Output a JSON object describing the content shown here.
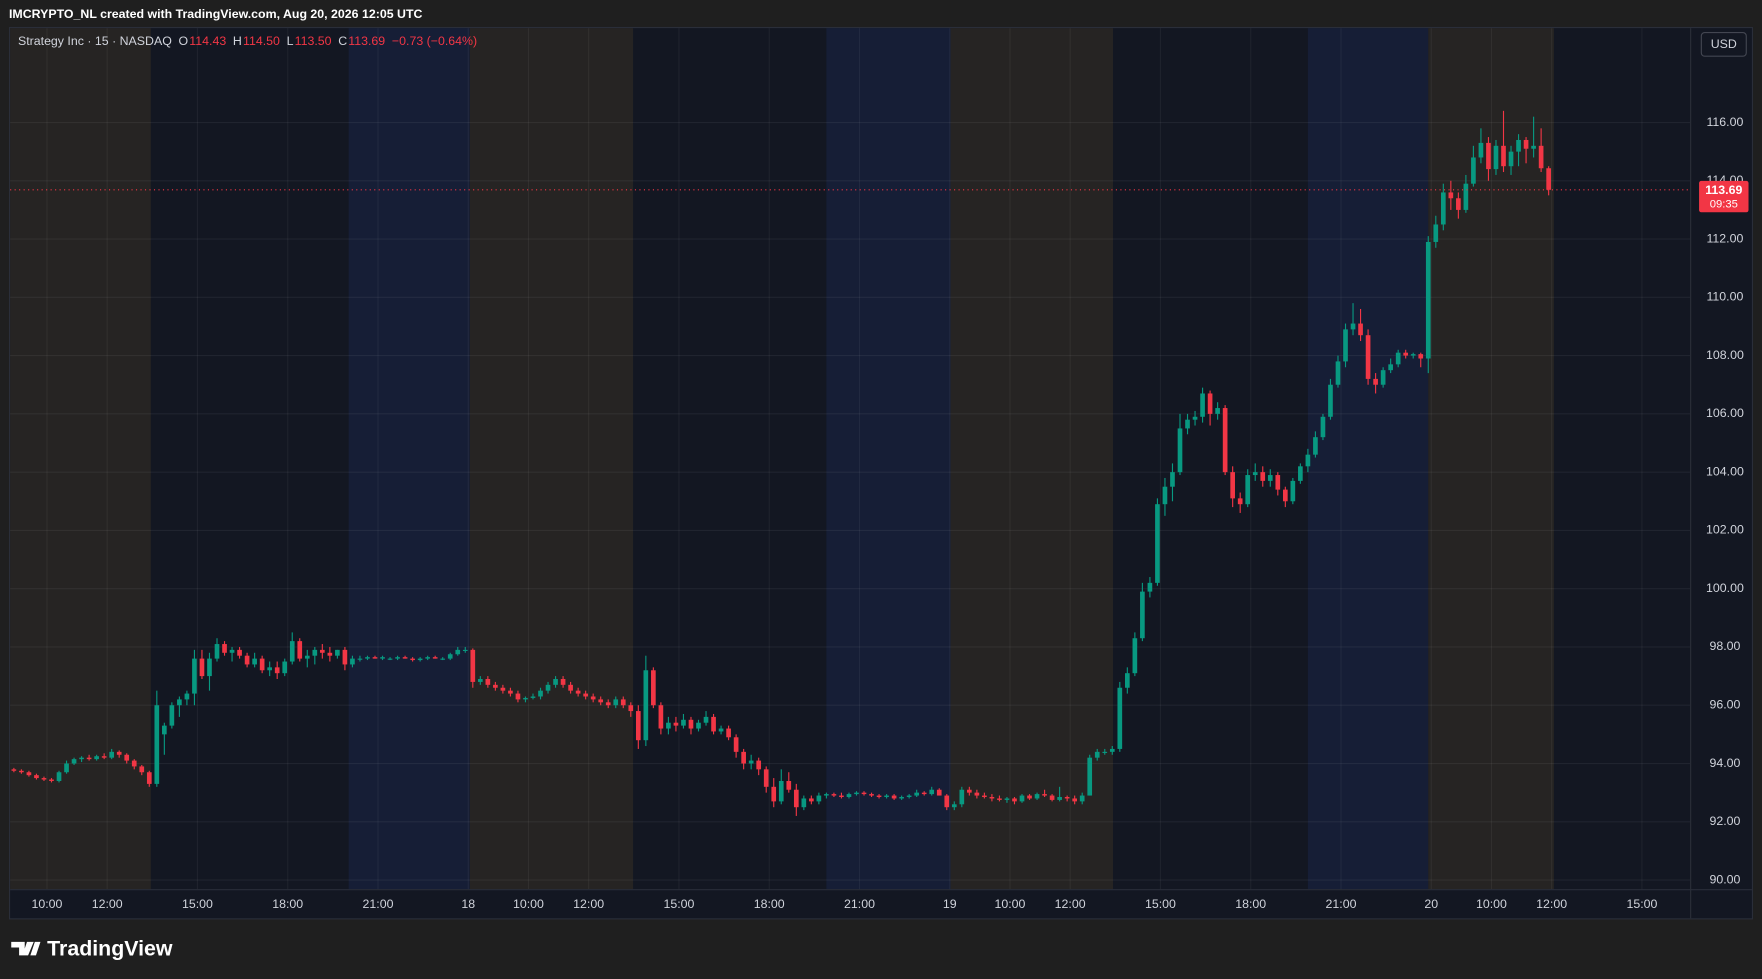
{
  "header": {
    "caption": "IMCRYPTO_NL created with TradingView.com, Aug 20, 2026 12:05 UTC"
  },
  "footer": {
    "brand": "TradingView"
  },
  "chart_data": {
    "type": "candlestick",
    "legend": {
      "symbol": "Strategy Inc · 15 · NASDAQ",
      "ohlc": [
        {
          "label": "O",
          "value": "114.43"
        },
        {
          "label": "H",
          "value": "114.50"
        },
        {
          "label": "L",
          "value": "113.50"
        },
        {
          "label": "C",
          "value": "113.69"
        }
      ],
      "change": "−0.73 (−0.64%)"
    },
    "currency": "USD",
    "last_price": {
      "label": "113.69",
      "countdown": "09:35"
    },
    "up_color": "#089981",
    "down_color": "#f23645",
    "xlim": [
      -0.5,
      222.8
    ],
    "ylim": [
      89.69,
      119.24
    ],
    "yticks": [
      {
        "value": 90,
        "label": "90.00"
      },
      {
        "value": 92,
        "label": "92.00"
      },
      {
        "value": 94,
        "label": "94.00"
      },
      {
        "value": 96,
        "label": "96.00"
      },
      {
        "value": 98,
        "label": "98.00"
      },
      {
        "value": 100,
        "label": "100.00"
      },
      {
        "value": 102,
        "label": "102.00"
      },
      {
        "value": 104,
        "label": "104.00"
      },
      {
        "value": 106,
        "label": "106.00"
      },
      {
        "value": 108,
        "label": "108.00"
      },
      {
        "value": 110,
        "label": "110.00"
      },
      {
        "value": 112,
        "label": "112.00"
      },
      {
        "value": 114,
        "label": "114.00"
      },
      {
        "value": 116,
        "label": "116.00"
      }
    ],
    "xticks": [
      {
        "value": 4.4,
        "label": "10:00"
      },
      {
        "value": 12.4,
        "label": "12:00"
      },
      {
        "value": 24.4,
        "label": "15:00"
      },
      {
        "value": 36.4,
        "label": "18:00"
      },
      {
        "value": 48.4,
        "label": "21:00"
      },
      {
        "value": 60.4,
        "label": "18"
      },
      {
        "value": 68.4,
        "label": "10:00"
      },
      {
        "value": 76.4,
        "label": "12:00"
      },
      {
        "value": 88.4,
        "label": "15:00"
      },
      {
        "value": 100.4,
        "label": "18:00"
      },
      {
        "value": 112.4,
        "label": "21:00"
      },
      {
        "value": 124.4,
        "label": "19"
      },
      {
        "value": 132.4,
        "label": "10:00"
      },
      {
        "value": 140.4,
        "label": "12:00"
      },
      {
        "value": 152.4,
        "label": "15:00"
      },
      {
        "value": 164.4,
        "label": "18:00"
      },
      {
        "value": 176.4,
        "label": "21:00"
      },
      {
        "value": 188.4,
        "label": "20"
      },
      {
        "value": 196.4,
        "label": "10:00"
      },
      {
        "value": 204.4,
        "label": "12:00"
      },
      {
        "value": 216.4,
        "label": "15:00"
      }
    ],
    "ohlc": [
      [
        93.8,
        93.85,
        93.7,
        93.75
      ],
      [
        93.75,
        93.8,
        93.65,
        93.7
      ],
      [
        93.7,
        93.75,
        93.55,
        93.6
      ],
      [
        93.6,
        93.65,
        93.45,
        93.5
      ],
      [
        93.5,
        93.55,
        93.4,
        93.45
      ],
      [
        93.45,
        93.5,
        93.35,
        93.4
      ],
      [
        93.4,
        93.75,
        93.35,
        93.7
      ],
      [
        93.7,
        94.1,
        93.65,
        94.0
      ],
      [
        94.0,
        94.2,
        93.95,
        94.15
      ],
      [
        94.15,
        94.25,
        94.05,
        94.2
      ],
      [
        94.2,
        94.3,
        94.1,
        94.15
      ],
      [
        94.15,
        94.3,
        94.1,
        94.25
      ],
      [
        94.25,
        94.35,
        94.15,
        94.2
      ],
      [
        94.2,
        94.5,
        94.15,
        94.4
      ],
      [
        94.4,
        94.45,
        94.2,
        94.3
      ],
      [
        94.3,
        94.35,
        94.0,
        94.1
      ],
      [
        94.1,
        94.15,
        93.8,
        93.9
      ],
      [
        93.9,
        93.95,
        93.6,
        93.7
      ],
      [
        93.7,
        93.75,
        93.2,
        93.3
      ],
      [
        93.3,
        96.5,
        93.2,
        96.0
      ],
      [
        95.0,
        95.4,
        94.3,
        95.3
      ],
      [
        95.3,
        96.1,
        95.2,
        96.0
      ],
      [
        96.0,
        96.3,
        95.6,
        96.2
      ],
      [
        96.2,
        96.5,
        96.0,
        96.4
      ],
      [
        96.4,
        97.9,
        96.0,
        97.6
      ],
      [
        97.6,
        97.9,
        96.9,
        97.0
      ],
      [
        97.0,
        97.8,
        96.5,
        97.6
      ],
      [
        97.6,
        98.3,
        97.5,
        98.1
      ],
      [
        98.1,
        98.2,
        97.7,
        97.8
      ],
      [
        97.8,
        98.0,
        97.5,
        97.9
      ],
      [
        97.9,
        98.0,
        97.6,
        97.7
      ],
      [
        97.7,
        97.8,
        97.3,
        97.4
      ],
      [
        97.4,
        97.8,
        97.3,
        97.6
      ],
      [
        97.6,
        97.7,
        97.1,
        97.2
      ],
      [
        97.2,
        97.5,
        97.0,
        97.3
      ],
      [
        97.3,
        97.5,
        96.9,
        97.1
      ],
      [
        97.1,
        97.6,
        97.0,
        97.5
      ],
      [
        97.5,
        98.5,
        97.4,
        98.2
      ],
      [
        98.2,
        98.3,
        97.5,
        97.6
      ],
      [
        97.6,
        97.9,
        97.3,
        97.7
      ],
      [
        97.7,
        98.0,
        97.4,
        97.9
      ],
      [
        97.9,
        98.1,
        97.6,
        97.8
      ],
      [
        97.8,
        98.0,
        97.5,
        97.7
      ],
      [
        97.7,
        97.9,
        97.6,
        97.9
      ],
      [
        97.9,
        98.0,
        97.2,
        97.4
      ],
      [
        97.4,
        97.7,
        97.3,
        97.6
      ],
      [
        97.6,
        97.7,
        97.5,
        97.6
      ],
      [
        97.6,
        97.7,
        97.55,
        97.65
      ],
      [
        97.65,
        97.7,
        97.6,
        97.6
      ],
      [
        97.6,
        97.7,
        97.55,
        97.65
      ],
      [
        97.6,
        97.65,
        97.55,
        97.6
      ],
      [
        97.6,
        97.7,
        97.55,
        97.65
      ],
      [
        97.65,
        97.7,
        97.6,
        97.6
      ],
      [
        97.6,
        97.65,
        97.5,
        97.55
      ],
      [
        97.55,
        97.65,
        97.5,
        97.6
      ],
      [
        97.6,
        97.7,
        97.55,
        97.65
      ],
      [
        97.65,
        97.7,
        97.6,
        97.6
      ],
      [
        97.6,
        97.65,
        97.55,
        97.6
      ],
      [
        97.6,
        97.8,
        97.55,
        97.75
      ],
      [
        97.75,
        98.0,
        97.7,
        97.9
      ],
      [
        97.9,
        98.0,
        97.8,
        97.9
      ],
      [
        97.9,
        97.95,
        96.6,
        96.8
      ],
      [
        96.8,
        97.0,
        96.7,
        96.9
      ],
      [
        96.9,
        97.0,
        96.6,
        96.7
      ],
      [
        96.7,
        96.8,
        96.5,
        96.6
      ],
      [
        96.6,
        96.7,
        96.4,
        96.5
      ],
      [
        96.5,
        96.6,
        96.3,
        96.4
      ],
      [
        96.4,
        96.5,
        96.1,
        96.2
      ],
      [
        96.2,
        96.3,
        96.1,
        96.25
      ],
      [
        96.25,
        96.4,
        96.2,
        96.3
      ],
      [
        96.3,
        96.6,
        96.2,
        96.5
      ],
      [
        96.5,
        96.8,
        96.4,
        96.7
      ],
      [
        96.7,
        97.0,
        96.6,
        96.9
      ],
      [
        96.9,
        97.0,
        96.6,
        96.7
      ],
      [
        96.7,
        96.8,
        96.4,
        96.5
      ],
      [
        96.5,
        96.6,
        96.3,
        96.4
      ],
      [
        96.4,
        96.5,
        96.2,
        96.3
      ],
      [
        96.3,
        96.4,
        96.1,
        96.2
      ],
      [
        96.2,
        96.3,
        96.0,
        96.1
      ],
      [
        96.1,
        96.2,
        95.9,
        96.0
      ],
      [
        96.0,
        96.3,
        95.9,
        96.2
      ],
      [
        96.2,
        96.3,
        95.9,
        96.0
      ],
      [
        96.0,
        96.1,
        95.6,
        95.8
      ],
      [
        95.8,
        96.0,
        94.5,
        94.8
      ],
      [
        94.8,
        97.7,
        94.6,
        97.2
      ],
      [
        97.2,
        97.3,
        95.9,
        96.0
      ],
      [
        96.0,
        96.1,
        95.0,
        95.2
      ],
      [
        95.2,
        95.6,
        95.0,
        95.4
      ],
      [
        95.4,
        95.6,
        95.1,
        95.3
      ],
      [
        95.3,
        95.7,
        95.2,
        95.5
      ],
      [
        95.5,
        95.6,
        95.0,
        95.2
      ],
      [
        95.2,
        95.5,
        95.1,
        95.4
      ],
      [
        95.4,
        95.8,
        95.3,
        95.6
      ],
      [
        95.6,
        95.7,
        95.0,
        95.1
      ],
      [
        95.1,
        95.3,
        95.0,
        95.2
      ],
      [
        95.2,
        95.3,
        94.8,
        94.9
      ],
      [
        94.9,
        95.0,
        94.2,
        94.4
      ],
      [
        94.4,
        94.5,
        93.8,
        94.0
      ],
      [
        94.0,
        94.3,
        93.8,
        94.1
      ],
      [
        94.1,
        94.2,
        93.6,
        93.8
      ],
      [
        93.8,
        93.9,
        93.0,
        93.2
      ],
      [
        93.2,
        93.5,
        92.5,
        92.7
      ],
      [
        92.7,
        93.8,
        92.6,
        93.4
      ],
      [
        93.4,
        93.7,
        93.0,
        93.1
      ],
      [
        93.1,
        93.3,
        92.2,
        92.5
      ],
      [
        92.5,
        92.9,
        92.4,
        92.8
      ],
      [
        92.8,
        92.9,
        92.6,
        92.7
      ],
      [
        92.7,
        93.0,
        92.6,
        92.9
      ],
      [
        92.9,
        93.0,
        92.8,
        92.95
      ],
      [
        92.95,
        93.0,
        92.85,
        92.9
      ],
      [
        92.9,
        93.0,
        92.8,
        92.85
      ],
      [
        92.85,
        93.0,
        92.8,
        92.95
      ],
      [
        92.95,
        93.05,
        92.9,
        93.0
      ],
      [
        93.0,
        93.05,
        92.9,
        92.95
      ],
      [
        92.95,
        93.0,
        92.85,
        92.9
      ],
      [
        92.9,
        92.95,
        92.8,
        92.85
      ],
      [
        92.85,
        92.95,
        92.8,
        92.9
      ],
      [
        92.9,
        92.95,
        92.75,
        92.8
      ],
      [
        92.8,
        92.9,
        92.75,
        92.85
      ],
      [
        92.85,
        92.95,
        92.8,
        92.9
      ],
      [
        92.9,
        93.1,
        92.85,
        93.0
      ],
      [
        93.0,
        93.05,
        92.9,
        92.95
      ],
      [
        92.95,
        93.2,
        92.9,
        93.1
      ],
      [
        93.1,
        93.15,
        92.9,
        92.9
      ],
      [
        92.9,
        92.95,
        92.4,
        92.5
      ],
      [
        92.5,
        92.7,
        92.4,
        92.6
      ],
      [
        92.6,
        93.2,
        92.5,
        93.1
      ],
      [
        93.1,
        93.2,
        92.9,
        93.0
      ],
      [
        93.0,
        93.1,
        92.8,
        92.9
      ],
      [
        92.9,
        93.0,
        92.8,
        92.85
      ],
      [
        92.85,
        92.95,
        92.7,
        92.8
      ],
      [
        92.8,
        92.9,
        92.7,
        92.75
      ],
      [
        92.75,
        92.85,
        92.65,
        92.8
      ],
      [
        92.8,
        92.85,
        92.6,
        92.7
      ],
      [
        92.7,
        92.95,
        92.65,
        92.9
      ],
      [
        92.9,
        92.95,
        92.75,
        92.8
      ],
      [
        92.8,
        93.0,
        92.75,
        92.95
      ],
      [
        92.95,
        93.1,
        92.85,
        92.9
      ],
      [
        92.9,
        92.95,
        92.7,
        92.75
      ],
      [
        92.75,
        93.2,
        92.7,
        92.85
      ],
      [
        92.85,
        92.9,
        92.7,
        92.8
      ],
      [
        92.8,
        92.9,
        92.6,
        92.7
      ],
      [
        92.7,
        93.0,
        92.6,
        92.9
      ],
      [
        92.9,
        94.3,
        92.9,
        94.2
      ],
      [
        94.2,
        94.5,
        94.1,
        94.4
      ],
      [
        94.4,
        94.5,
        94.3,
        94.4
      ],
      [
        94.4,
        94.6,
        94.3,
        94.5
      ],
      [
        94.5,
        96.8,
        94.4,
        96.6
      ],
      [
        96.6,
        97.3,
        96.4,
        97.1
      ],
      [
        97.1,
        98.5,
        97.0,
        98.3
      ],
      [
        98.3,
        100.2,
        98.2,
        99.9
      ],
      [
        99.9,
        100.4,
        99.7,
        100.2
      ],
      [
        100.2,
        103.1,
        100.1,
        102.9
      ],
      [
        102.9,
        103.8,
        102.5,
        103.5
      ],
      [
        103.5,
        104.3,
        103.0,
        104.0
      ],
      [
        104.0,
        106.0,
        103.9,
        105.5
      ],
      [
        105.5,
        106.0,
        105.3,
        105.8
      ],
      [
        105.8,
        106.1,
        105.6,
        105.9
      ],
      [
        105.9,
        106.9,
        105.7,
        106.7
      ],
      [
        106.7,
        106.8,
        105.6,
        106.0
      ],
      [
        106.0,
        106.4,
        105.8,
        106.2
      ],
      [
        106.2,
        106.3,
        103.9,
        104.0
      ],
      [
        104.0,
        104.2,
        102.8,
        103.1
      ],
      [
        103.1,
        103.3,
        102.6,
        102.9
      ],
      [
        102.9,
        104.1,
        102.8,
        103.9
      ],
      [
        103.9,
        104.3,
        103.7,
        104.0
      ],
      [
        104.0,
        104.2,
        103.5,
        103.7
      ],
      [
        103.7,
        104.1,
        103.5,
        103.9
      ],
      [
        103.9,
        104.0,
        103.2,
        103.4
      ],
      [
        103.4,
        103.5,
        102.8,
        103.0
      ],
      [
        103.0,
        103.8,
        102.9,
        103.7
      ],
      [
        103.7,
        104.3,
        103.6,
        104.2
      ],
      [
        104.2,
        104.8,
        104.0,
        104.6
      ],
      [
        104.6,
        105.4,
        104.5,
        105.2
      ],
      [
        105.2,
        106.0,
        105.1,
        105.9
      ],
      [
        105.9,
        107.2,
        105.8,
        107.0
      ],
      [
        107.0,
        108.0,
        106.9,
        107.8
      ],
      [
        107.8,
        109.1,
        107.6,
        108.9
      ],
      [
        108.9,
        109.8,
        108.7,
        109.1
      ],
      [
        109.1,
        109.6,
        108.5,
        108.7
      ],
      [
        108.7,
        108.9,
        107.0,
        107.2
      ],
      [
        107.2,
        107.4,
        106.7,
        107.0
      ],
      [
        107.0,
        107.6,
        106.9,
        107.5
      ],
      [
        107.5,
        107.9,
        107.4,
        107.7
      ],
      [
        107.7,
        108.2,
        107.6,
        108.1
      ],
      [
        108.1,
        108.2,
        107.9,
        108.0
      ],
      [
        108.0,
        108.1,
        107.9,
        108.05
      ],
      [
        108.05,
        108.1,
        107.6,
        107.9
      ],
      [
        107.9,
        112.1,
        107.4,
        111.9
      ],
      [
        111.9,
        112.8,
        111.7,
        112.5
      ],
      [
        112.5,
        113.9,
        112.3,
        113.6
      ],
      [
        113.6,
        114.0,
        113.0,
        113.4
      ],
      [
        113.4,
        113.6,
        112.7,
        113.0
      ],
      [
        113.0,
        114.2,
        112.9,
        113.9
      ],
      [
        113.9,
        115.2,
        113.8,
        114.8
      ],
      [
        114.8,
        115.8,
        114.6,
        115.3
      ],
      [
        115.3,
        115.5,
        114.0,
        114.4
      ],
      [
        114.4,
        115.4,
        114.2,
        115.2
      ],
      [
        115.2,
        116.4,
        114.3,
        114.5
      ],
      [
        114.5,
        115.2,
        114.2,
        115.0
      ],
      [
        115.0,
        115.6,
        114.5,
        115.4
      ],
      [
        115.4,
        115.5,
        114.6,
        115.1
      ],
      [
        115.1,
        116.2,
        114.8,
        115.2
      ],
      [
        115.2,
        115.8,
        114.3,
        114.43
      ],
      [
        114.43,
        114.5,
        113.5,
        113.69
      ]
    ]
  }
}
